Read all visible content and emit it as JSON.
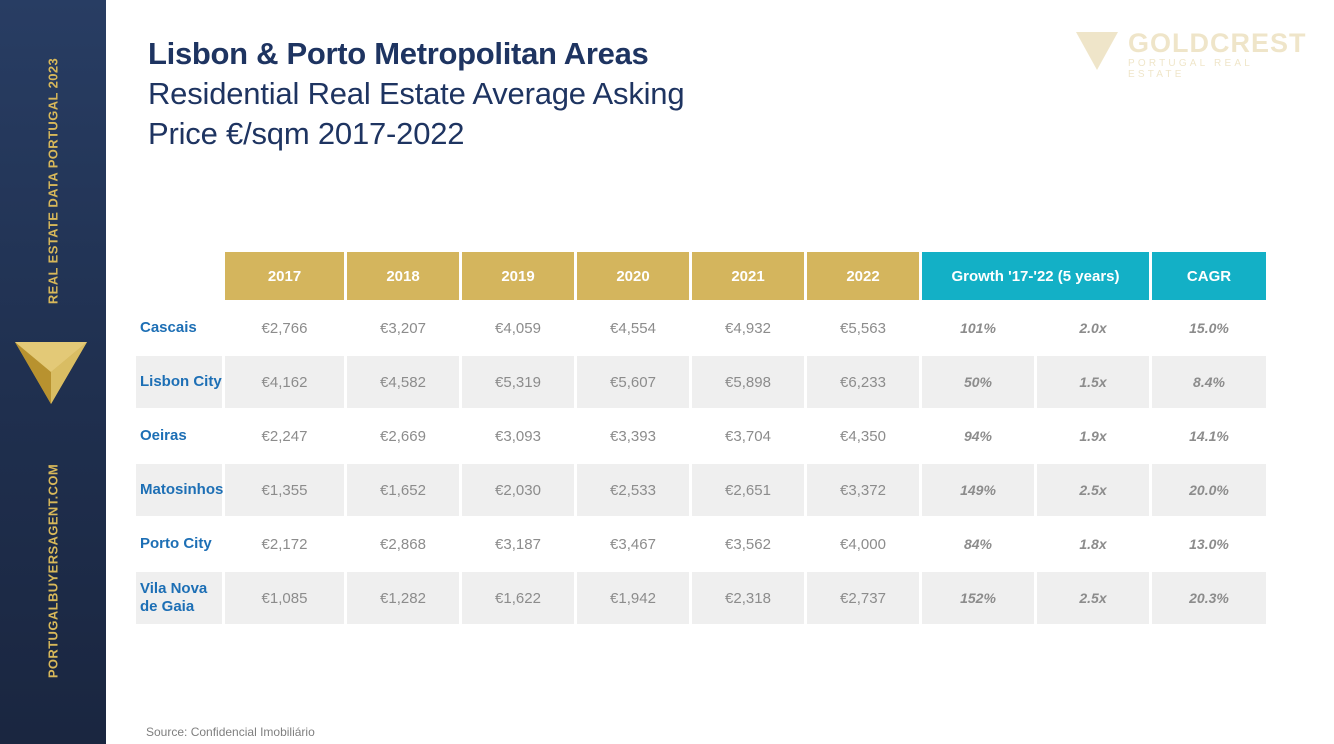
{
  "sidebar": {
    "top_text": "REAL ESTATE DATA PORTUGAL 2023",
    "bottom_text": "PORTUGALBUYERSAGENT.COM",
    "logo_icon": "gold-triangle-logo-icon"
  },
  "title": {
    "line1": "Lisbon & Porto Metropolitan Areas",
    "line2": "Residential Real Estate Average Asking",
    "line3": "Price €/sqm 2017-2022"
  },
  "brand": {
    "name": "GOLDCREST",
    "tagline": "PORTUGAL REAL ESTATE"
  },
  "colors": {
    "navy": "#1e3461",
    "gold": "#d4b55d",
    "teal": "#13b0c6",
    "row_label_blue": "#1d6fb5"
  },
  "table": {
    "headers": [
      "2017",
      "2018",
      "2019",
      "2020",
      "2021",
      "2022",
      "Growth '17-'22 (5 years)",
      "CAGR"
    ],
    "rows": [
      {
        "name": "Cascais",
        "values": [
          "€2,766",
          "€3,207",
          "€4,059",
          "€4,554",
          "€4,932",
          "€5,563"
        ],
        "growth_pct": "101%",
        "multiple": "2.0x",
        "cagr": "15.0%"
      },
      {
        "name": "Lisbon City",
        "values": [
          "€4,162",
          "€4,582",
          "€5,319",
          "€5,607",
          "€5,898",
          "€6,233"
        ],
        "growth_pct": "50%",
        "multiple": "1.5x",
        "cagr": "8.4%"
      },
      {
        "name": "Oeiras",
        "values": [
          "€2,247",
          "€2,669",
          "€3,093",
          "€3,393",
          "€3,704",
          "€4,350"
        ],
        "growth_pct": "94%",
        "multiple": "1.9x",
        "cagr": "14.1%"
      },
      {
        "name": "Matosinhos",
        "values": [
          "€1,355",
          "€1,652",
          "€2,030",
          "€2,533",
          "€2,651",
          "€3,372"
        ],
        "growth_pct": "149%",
        "multiple": "2.5x",
        "cagr": "20.0%"
      },
      {
        "name": "Porto City",
        "values": [
          "€2,172",
          "€2,868",
          "€3,187",
          "€3,467",
          "€3,562",
          "€4,000"
        ],
        "growth_pct": "84%",
        "multiple": "1.8x",
        "cagr": "13.0%"
      },
      {
        "name": "Vila Nova de Gaia",
        "values": [
          "€1,085",
          "€1,282",
          "€1,622",
          "€1,942",
          "€2,318",
          "€2,737"
        ],
        "growth_pct": "152%",
        "multiple": "2.5x",
        "cagr": "20.3%"
      }
    ]
  },
  "source": "Source:  Confidencial  Imobiliário"
}
